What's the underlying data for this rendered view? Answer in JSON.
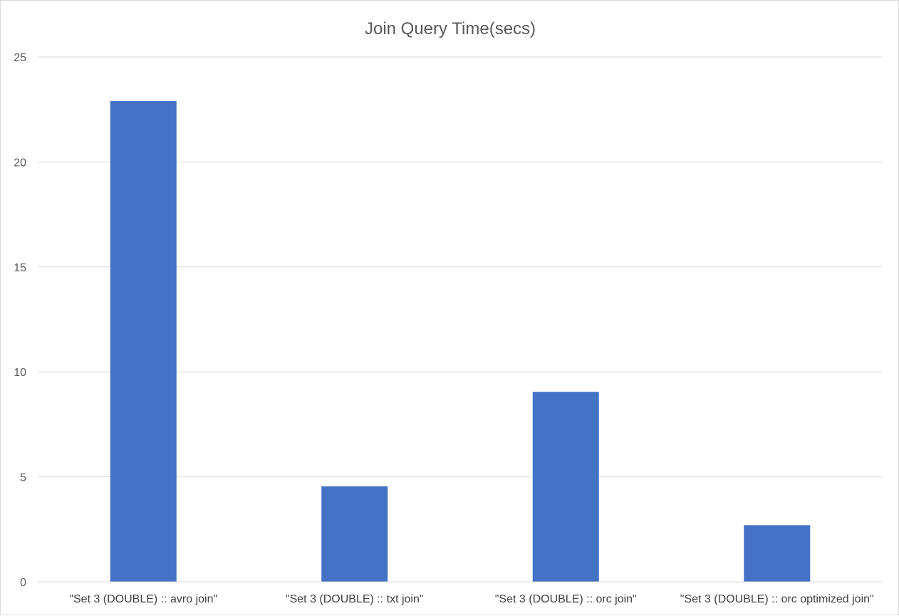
{
  "chart_data": {
    "type": "bar",
    "title": "Join Query Time(secs)",
    "categories": [
      "\"Set 3 (DOUBLE) :: avro join\"",
      "\"Set 3 (DOUBLE) :: txt join\"",
      "\"Set 3 (DOUBLE) :: orc join\"",
      "\"Set 3 (DOUBLE) :: orc optimized join\""
    ],
    "values": [
      22.9,
      4.55,
      9.05,
      2.7
    ],
    "ylim": [
      0,
      25
    ],
    "yticks": [
      0,
      5,
      10,
      15,
      20,
      25
    ],
    "grid": true,
    "legend": "none",
    "bar_color": "#4472C4",
    "grid_color": "#d9d9d9"
  }
}
